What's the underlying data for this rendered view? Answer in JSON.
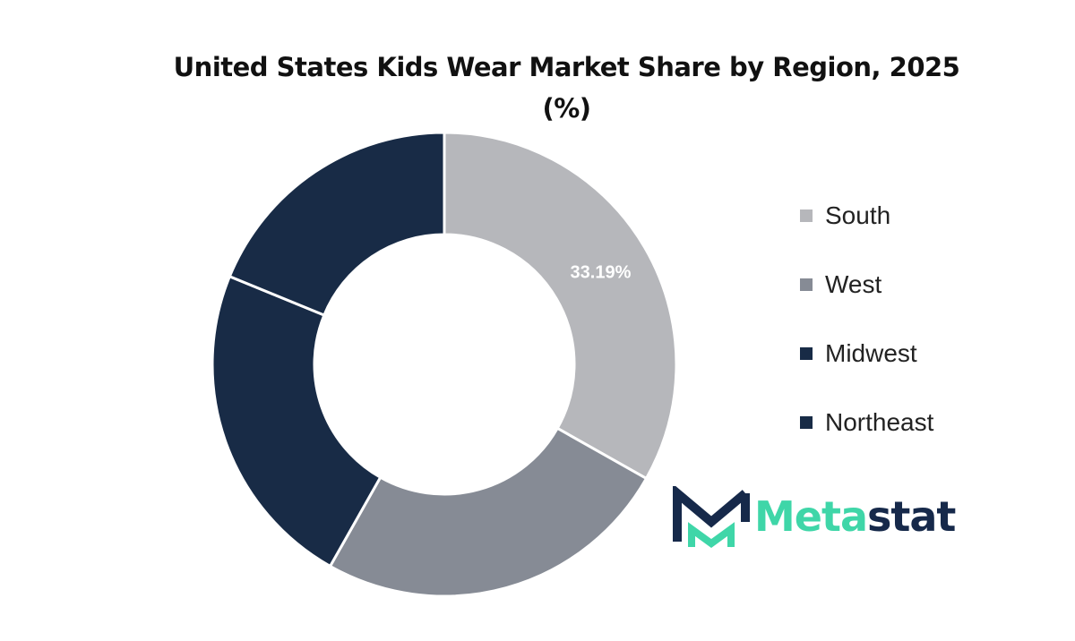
{
  "chart_data": {
    "type": "pie",
    "variant": "donut",
    "title": "United States Kids Wear Market Share by Region, 2025 (%)",
    "title_lines": [
      "United States Kids Wear Market Share by Region, 2025",
      "(%)"
    ],
    "categories": [
      "South",
      "West",
      "Midwest",
      "Northeast"
    ],
    "values": [
      33.19,
      25.0,
      23.0,
      18.81
    ],
    "data_labels": [
      "33.19%",
      "",
      "",
      ""
    ],
    "colors": [
      "#b6b7bb",
      "#868b95",
      "#182b46",
      "#182b46"
    ],
    "legend_position": "right",
    "start_angle_deg": 0,
    "direction": "clockwise"
  },
  "logo": {
    "text_a": "Meta",
    "text_b": "stat"
  }
}
